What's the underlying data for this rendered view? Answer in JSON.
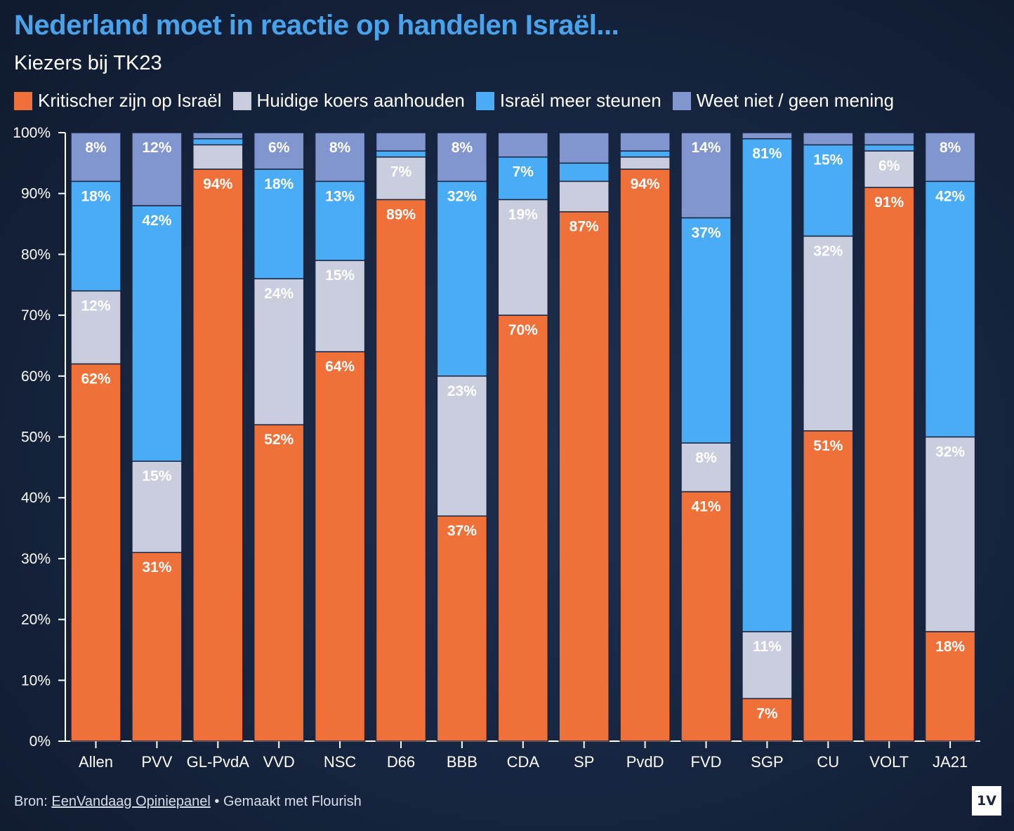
{
  "title": "Nederland moet in reactie op handelen Israël...",
  "subtitle": "Kiezers bij TK23",
  "footer": {
    "prefix": "Bron:",
    "source_link": "EenVandaag Opiniepanel",
    "separator": "•",
    "made_with": "Gemaakt met Flourish"
  },
  "logo_text": "1V",
  "chart_data": {
    "type": "bar",
    "stacked": true,
    "categories": [
      "Allen",
      "PVV",
      "GL-PvdA",
      "VVD",
      "NSC",
      "D66",
      "BBB",
      "CDA",
      "SP",
      "PvdD",
      "FVD",
      "SGP",
      "CU",
      "VOLT",
      "JA21"
    ],
    "series": [
      {
        "name": "Kritischer zijn op Israël",
        "color": "#ef7139",
        "values": [
          62,
          31,
          94,
          52,
          64,
          89,
          37,
          70,
          87,
          94,
          41,
          7,
          51,
          91,
          18
        ],
        "labels": [
          "62%",
          "31%",
          "94%",
          "52%",
          "64%",
          "89%",
          "37%",
          "70%",
          "87%",
          "94%",
          "41%",
          "7%",
          "51%",
          "91%",
          "18%"
        ]
      },
      {
        "name": "Huidige koers aanhouden",
        "color": "#c9cddd",
        "values": [
          12,
          15,
          4,
          24,
          15,
          7,
          23,
          19,
          5,
          2,
          8,
          11,
          32,
          6,
          32
        ],
        "labels": [
          "12%",
          "15%",
          "",
          "24%",
          "15%",
          "7%",
          "23%",
          "19%",
          "",
          "",
          "8%",
          "11%",
          "32%",
          "6%",
          "32%"
        ]
      },
      {
        "name": "Israël meer steunen",
        "color": "#4aacf5",
        "values": [
          18,
          42,
          1,
          18,
          13,
          1,
          32,
          7,
          3,
          1,
          37,
          81,
          15,
          1,
          42
        ],
        "labels": [
          "18%",
          "42%",
          "",
          "18%",
          "13%",
          "",
          "32%",
          "7%",
          "",
          "",
          "37%",
          "81%",
          "15%",
          "",
          "42%"
        ]
      },
      {
        "name": "Weet niet / geen mening",
        "color": "#8196cf",
        "values": [
          8,
          12,
          1,
          6,
          8,
          3,
          8,
          4,
          5,
          3,
          14,
          1,
          2,
          2,
          8
        ],
        "labels": [
          "8%",
          "12%",
          "",
          "6%",
          "8%",
          "",
          "8%",
          "",
          "",
          "",
          "14%",
          "",
          "",
          "",
          "8%"
        ]
      }
    ],
    "ylim": [
      0,
      100
    ],
    "yticks": [
      "0%",
      "10%",
      "20%",
      "30%",
      "40%",
      "50%",
      "60%",
      "70%",
      "80%",
      "90%",
      "100%"
    ],
    "legend_position": "top-left",
    "grid": false
  }
}
